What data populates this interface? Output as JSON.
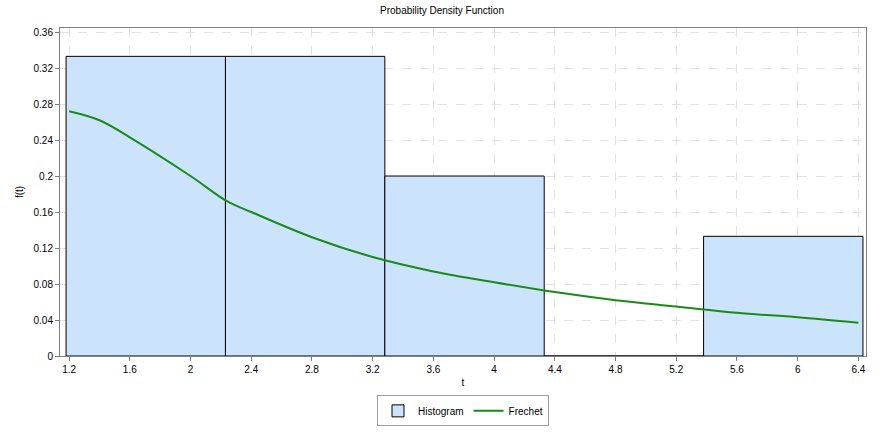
{
  "chart_data": {
    "type": "histogram",
    "title": "Probability Density Function",
    "x_label": "t",
    "y_label": "f(t)",
    "xlim": [
      1.14,
      6.45
    ],
    "xticks": [
      1.2,
      1.6,
      2,
      2.4,
      2.8,
      3.2,
      3.6,
      4,
      4.4,
      4.8,
      5.2,
      5.6,
      6,
      6.4
    ],
    "ylim": [
      0,
      0.3645
    ],
    "yticks": [
      0,
      0.04,
      0.08,
      0.12,
      0.16,
      0.2,
      0.24,
      0.28,
      0.32,
      0.36
    ],
    "grid": true,
    "legend": "bottom",
    "series": [
      {
        "name": "Histogram",
        "type": "bar",
        "color": "#cce4fb",
        "bins": [
          1.18,
          2.23,
          3.28,
          4.33,
          5.38,
          6.43
        ],
        "values": [
          0.333,
          0.333,
          0.2,
          0,
          0.133
        ]
      },
      {
        "name": "Frechet",
        "type": "line",
        "color": "#1a8a1a",
        "x": [
          1.2,
          1.4,
          1.6,
          2.0,
          2.24,
          2.4,
          2.8,
          3.2,
          3.6,
          4.0,
          4.4,
          4.8,
          5.2,
          5.6,
          6.0,
          6.4
        ],
        "values": [
          0.272,
          0.262,
          0.243,
          0.2,
          0.172,
          0.16,
          0.132,
          0.11,
          0.094,
          0.082,
          0.071,
          0.062,
          0.055,
          0.048,
          0.043,
          0.037
        ]
      }
    ]
  }
}
